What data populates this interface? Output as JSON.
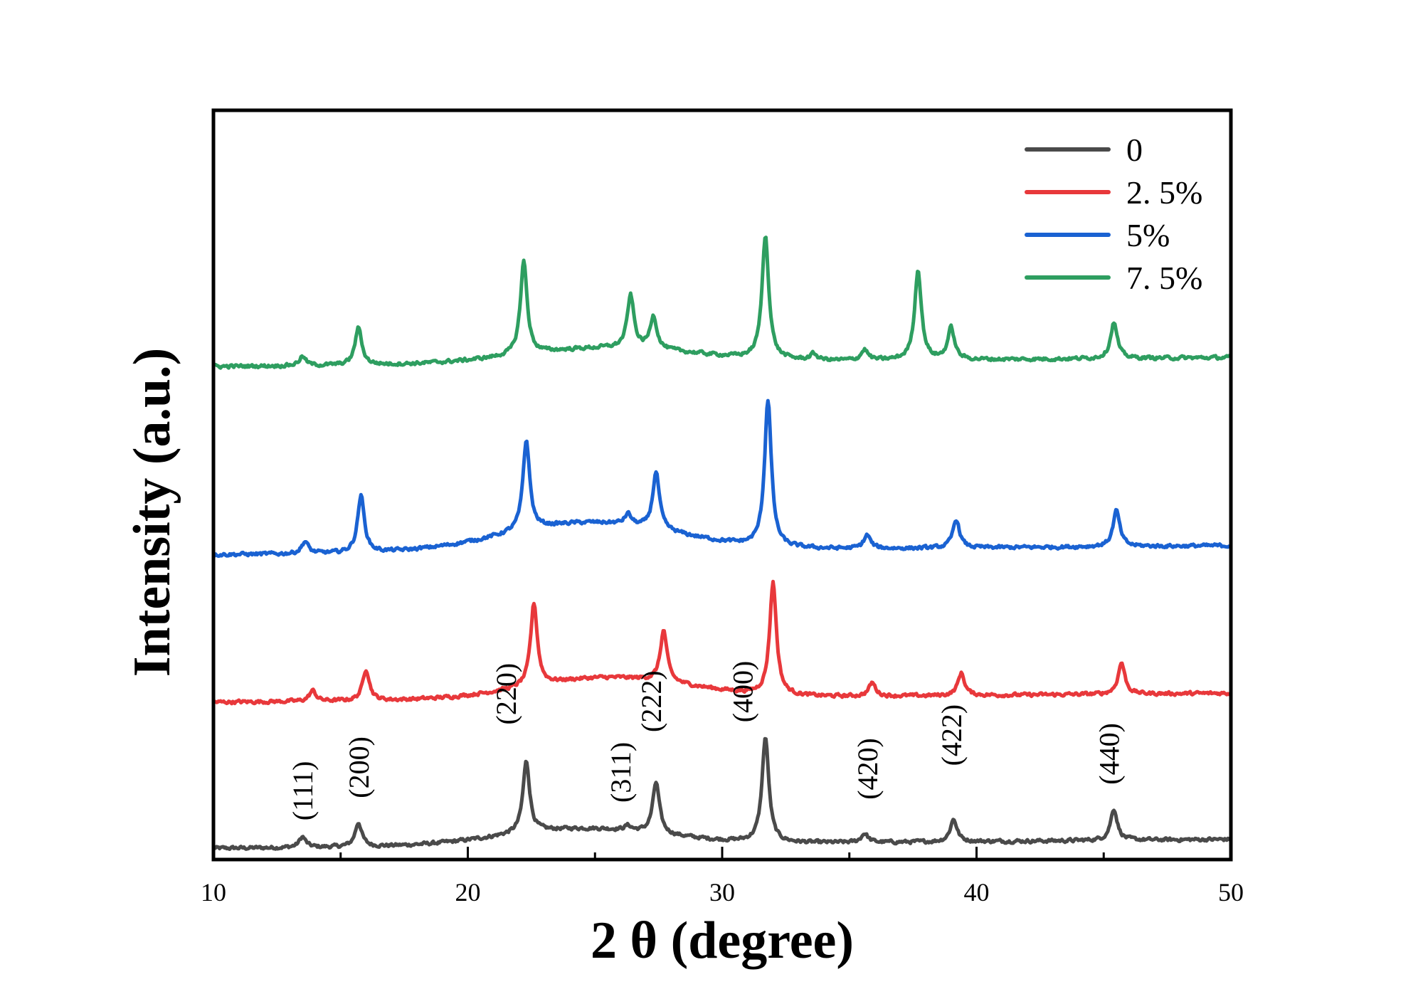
{
  "chart_data": {
    "type": "line",
    "title": "",
    "xlabel": "2 θ (degree)",
    "ylabel": "Intensity (a.u.)",
    "xlim": [
      10,
      50
    ],
    "xticks": [
      10,
      20,
      30,
      40,
      50
    ],
    "xtick_labels": [
      "10",
      "20",
      "30",
      "40",
      "50"
    ],
    "y_ticks_shown": false,
    "stacked_offset": true,
    "ylim": [
      0,
      1000
    ],
    "legend": {
      "position": "top-right"
    },
    "series": [
      {
        "name": "0",
        "color": "#4a4a4a",
        "baseline": 15,
        "slope": 0.3,
        "bump": {
          "center": 24.5,
          "width": 4.5,
          "height": 22
        },
        "peaks": [
          {
            "x": 13.5,
            "h": 14
          },
          {
            "x": 15.7,
            "h": 32
          },
          {
            "x": 22.3,
            "h": 95
          },
          {
            "x": 26.3,
            "h": 6
          },
          {
            "x": 27.4,
            "h": 68
          },
          {
            "x": 31.7,
            "h": 140
          },
          {
            "x": 35.6,
            "h": 12
          },
          {
            "x": 39.1,
            "h": 30
          },
          {
            "x": 45.4,
            "h": 42
          }
        ]
      },
      {
        "name": "2. 5%",
        "color": "#e8383b",
        "baseline": 210,
        "slope": 0.3,
        "bump": {
          "center": 25.5,
          "width": 4.5,
          "height": 28
        },
        "peaks": [
          {
            "x": 13.9,
            "h": 14
          },
          {
            "x": 16.0,
            "h": 42
          },
          {
            "x": 22.6,
            "h": 110
          },
          {
            "x": 27.7,
            "h": 68
          },
          {
            "x": 32.0,
            "h": 150
          },
          {
            "x": 35.9,
            "h": 18
          },
          {
            "x": 39.4,
            "h": 30
          },
          {
            "x": 45.7,
            "h": 42
          }
        ]
      },
      {
        "name": "5%",
        "color": "#1a62d2",
        "baseline": 407,
        "slope": 0.3,
        "bump": {
          "center": 24.8,
          "width": 4.8,
          "height": 38
        },
        "peaks": [
          {
            "x": 13.6,
            "h": 16
          },
          {
            "x": 15.8,
            "h": 76
          },
          {
            "x": 22.3,
            "h": 120
          },
          {
            "x": 26.3,
            "h": 14
          },
          {
            "x": 27.4,
            "h": 76
          },
          {
            "x": 31.8,
            "h": 196
          },
          {
            "x": 35.7,
            "h": 18
          },
          {
            "x": 39.2,
            "h": 38
          },
          {
            "x": 45.5,
            "h": 48
          }
        ]
      },
      {
        "name": "7. 5%",
        "color": "#2e9e60",
        "baseline": 658,
        "slope": 0.3,
        "bump": {
          "center": 25.5,
          "width": 4.8,
          "height": 20
        },
        "peaks": [
          {
            "x": 13.5,
            "h": 12
          },
          {
            "x": 15.7,
            "h": 50
          },
          {
            "x": 22.2,
            "h": 124
          },
          {
            "x": 26.4,
            "h": 70
          },
          {
            "x": 27.3,
            "h": 44
          },
          {
            "x": 31.7,
            "h": 164
          },
          {
            "x": 33.6,
            "h": 8
          },
          {
            "x": 35.6,
            "h": 14
          },
          {
            "x": 37.7,
            "h": 120
          },
          {
            "x": 39.0,
            "h": 42
          },
          {
            "x": 45.4,
            "h": 48
          }
        ]
      }
    ],
    "annotations": [
      {
        "text": "(111)",
        "x": 13.5,
        "y": 52
      },
      {
        "text": "(200)",
        "x": 15.7,
        "y": 82
      },
      {
        "text": "(220)",
        "x": 21.5,
        "y": 180
      },
      {
        "text": "(311)",
        "x": 26.0,
        "y": 76
      },
      {
        "text": "(222)",
        "x": 27.2,
        "y": 170
      },
      {
        "text": "(400)",
        "x": 30.8,
        "y": 183
      },
      {
        "text": "(420)",
        "x": 35.7,
        "y": 80
      },
      {
        "text": "(422)",
        "x": 39.0,
        "y": 125
      },
      {
        "text": "(440)",
        "x": 45.2,
        "y": 100
      }
    ]
  }
}
